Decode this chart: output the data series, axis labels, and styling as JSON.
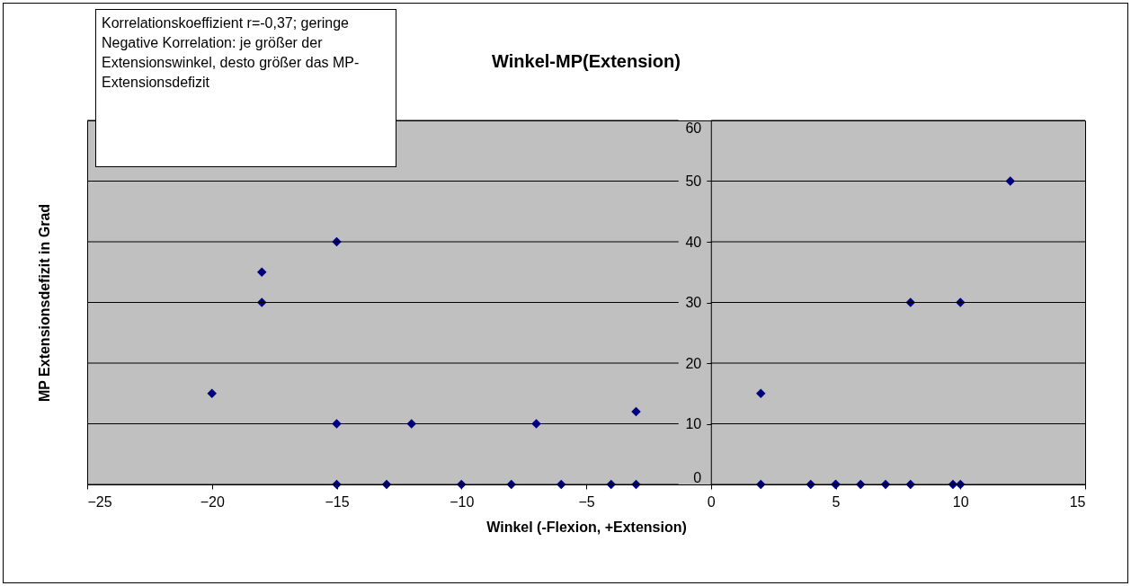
{
  "chart_data": {
    "type": "scatter",
    "title": "Winkel-MP(Extension)",
    "xlabel": "Winkel (-Flexion, +Extension)",
    "ylabel": "MP Extensionsdefizit in Grad",
    "annotations": [
      "Korrelationskoeffizient r=-0,37; geringe Negative Korrelation: je größer der Extensionswinkel, desto größer das MP-Extensionsdefizit"
    ],
    "x": [
      -20,
      -18,
      -18,
      -15,
      -15,
      -15,
      -13,
      -12,
      -10,
      -8,
      -7,
      -6,
      -4,
      -3,
      -3,
      2,
      2,
      4,
      5,
      5,
      6,
      7,
      8,
      8,
      9.7,
      10,
      10,
      12
    ],
    "series": [
      {
        "color": "#000080",
        "values": [
          15,
          35,
          30,
          40,
          10,
          0,
          0,
          10,
          0,
          0,
          10,
          0,
          0,
          12,
          0,
          15,
          0,
          0,
          0,
          0,
          0,
          0,
          0,
          30,
          0,
          0,
          30,
          50
        ]
      }
    ],
    "xlim": [
      -25,
      15
    ],
    "xticks": [
      -25,
      -20,
      -15,
      -10,
      -5,
      0,
      5,
      10,
      15
    ],
    "ylim": [
      0,
      60
    ],
    "yticks": [
      0,
      10,
      20,
      30,
      40,
      50,
      60
    ],
    "grid": "y",
    "marker": "diamond",
    "legend": false
  }
}
